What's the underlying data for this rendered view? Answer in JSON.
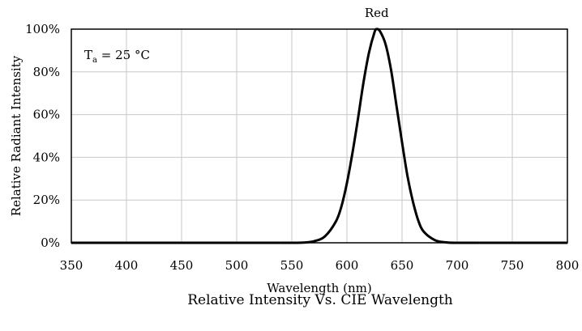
{
  "chart_data": {
    "type": "line",
    "caption": "Relative Intensity Vs. CIE Wavelength",
    "xlabel": "Wavelength (nm)",
    "ylabel": "Relative Radiant Intensity",
    "xlim": [
      350,
      800
    ],
    "ylim": [
      0,
      100
    ],
    "x_ticks": [
      "350",
      "400",
      "450",
      "500",
      "550",
      "600",
      "650",
      "700",
      "750",
      "800"
    ],
    "y_ticks": [
      "0%",
      "20%",
      "40%",
      "60%",
      "80%",
      "100%"
    ],
    "grid": true,
    "annotation": {
      "main": "T",
      "subscript": "a",
      "rest": " = 25 °C"
    },
    "series": [
      {
        "name": "Red",
        "color": "#000000",
        "x": [
          540,
          550,
          560,
          570,
          580,
          590,
          595,
          600,
          605,
          610,
          615,
          620,
          625,
          627,
          630,
          635,
          640,
          645,
          650,
          655,
          660,
          665,
          670,
          680,
          690,
          700,
          710,
          720
        ],
        "y": [
          0,
          0,
          0.1,
          0.7,
          3.0,
          10.0,
          17.0,
          28.0,
          42.0,
          58.0,
          75.0,
          89.0,
          98.5,
          100.0,
          99.0,
          93.0,
          81.0,
          64.0,
          47.0,
          31.0,
          19.0,
          10.0,
          5.0,
          1.2,
          0.2,
          0,
          0,
          0
        ]
      }
    ]
  }
}
